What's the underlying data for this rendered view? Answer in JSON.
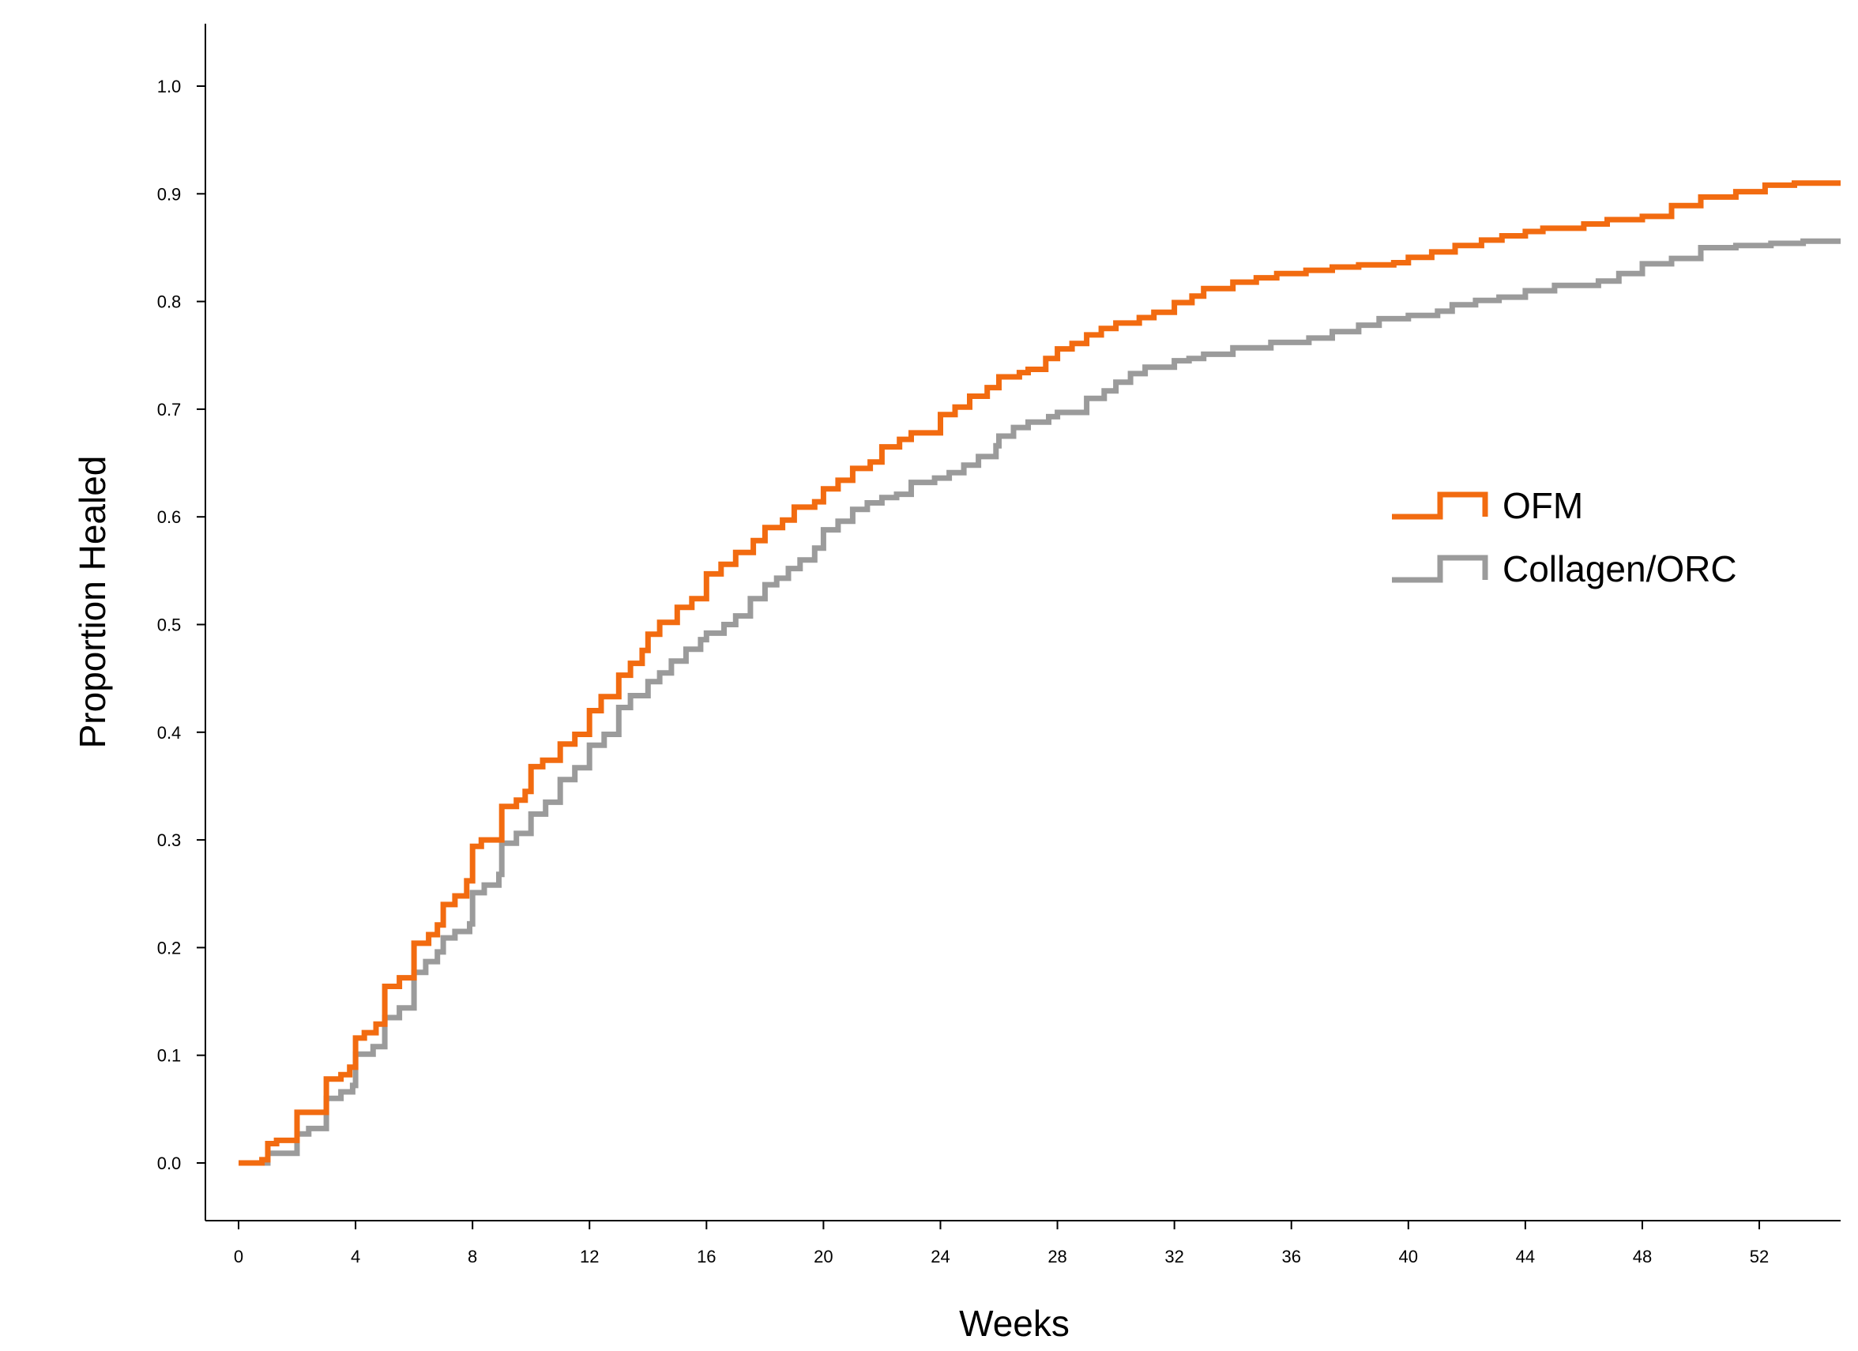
{
  "chart_data": {
    "type": "line",
    "step": true,
    "title": "",
    "xlabel": "Weeks",
    "ylabel": "Proportion Healed",
    "xlim": [
      -1.0,
      55.0
    ],
    "ylim": [
      -0.052,
      1.055
    ],
    "xticks": [
      0,
      4,
      8,
      12,
      16,
      20,
      24,
      28,
      32,
      36,
      40,
      44,
      48,
      52
    ],
    "yticks": [
      "0.0",
      "0.1",
      "0.2",
      "0.3",
      "0.4",
      "0.5",
      "0.6",
      "0.7",
      "0.8",
      "0.9",
      "1.0"
    ],
    "legend_position": "right",
    "grid": false,
    "series": [
      {
        "name": "OFM",
        "color": "#F26B10",
        "points": [
          [
            0,
            0.0
          ],
          [
            0.8,
            0.003
          ],
          [
            1.0,
            0.018
          ],
          [
            1.3,
            0.021
          ],
          [
            2.0,
            0.047
          ],
          [
            3.0,
            0.078
          ],
          [
            3.5,
            0.082
          ],
          [
            3.8,
            0.089
          ],
          [
            4.0,
            0.116
          ],
          [
            4.3,
            0.121
          ],
          [
            4.7,
            0.129
          ],
          [
            5.0,
            0.164
          ],
          [
            5.5,
            0.172
          ],
          [
            6.0,
            0.204
          ],
          [
            6.5,
            0.212
          ],
          [
            6.8,
            0.221
          ],
          [
            7.0,
            0.24
          ],
          [
            7.4,
            0.248
          ],
          [
            7.8,
            0.262
          ],
          [
            8.0,
            0.294
          ],
          [
            8.3,
            0.3
          ],
          [
            9.0,
            0.331
          ],
          [
            9.5,
            0.337
          ],
          [
            9.8,
            0.345
          ],
          [
            10.0,
            0.368
          ],
          [
            10.4,
            0.374
          ],
          [
            11.0,
            0.389
          ],
          [
            11.5,
            0.398
          ],
          [
            12.0,
            0.42
          ],
          [
            12.4,
            0.433
          ],
          [
            13.0,
            0.453
          ],
          [
            13.4,
            0.464
          ],
          [
            13.8,
            0.476
          ],
          [
            14.0,
            0.491
          ],
          [
            14.4,
            0.502
          ],
          [
            15.0,
            0.516
          ],
          [
            15.5,
            0.524
          ],
          [
            16.0,
            0.547
          ],
          [
            16.5,
            0.556
          ],
          [
            17.0,
            0.567
          ],
          [
            17.6,
            0.578
          ],
          [
            18.0,
            0.59
          ],
          [
            18.6,
            0.597
          ],
          [
            19.0,
            0.609
          ],
          [
            19.7,
            0.614
          ],
          [
            20.0,
            0.626
          ],
          [
            20.5,
            0.634
          ],
          [
            21.0,
            0.645
          ],
          [
            21.6,
            0.651
          ],
          [
            22.0,
            0.665
          ],
          [
            22.6,
            0.672
          ],
          [
            23.0,
            0.678
          ],
          [
            24.0,
            0.695
          ],
          [
            24.5,
            0.702
          ],
          [
            25.0,
            0.712
          ],
          [
            25.6,
            0.72
          ],
          [
            26.0,
            0.73
          ],
          [
            26.7,
            0.734
          ],
          [
            27.0,
            0.737
          ],
          [
            27.6,
            0.747
          ],
          [
            28.0,
            0.756
          ],
          [
            28.5,
            0.761
          ],
          [
            29.0,
            0.769
          ],
          [
            29.5,
            0.775
          ],
          [
            30.0,
            0.78
          ],
          [
            30.8,
            0.785
          ],
          [
            31.3,
            0.79
          ],
          [
            32.0,
            0.799
          ],
          [
            32.6,
            0.805
          ],
          [
            33.0,
            0.812
          ],
          [
            34.0,
            0.818
          ],
          [
            34.8,
            0.822
          ],
          [
            35.5,
            0.826
          ],
          [
            36.5,
            0.829
          ],
          [
            37.4,
            0.832
          ],
          [
            38.3,
            0.834
          ],
          [
            39.5,
            0.836
          ],
          [
            40.0,
            0.841
          ],
          [
            40.8,
            0.846
          ],
          [
            41.6,
            0.852
          ],
          [
            42.5,
            0.857
          ],
          [
            43.2,
            0.861
          ],
          [
            44.0,
            0.865
          ],
          [
            44.6,
            0.868
          ],
          [
            46.0,
            0.872
          ],
          [
            46.8,
            0.876
          ],
          [
            48.0,
            0.879
          ],
          [
            49.0,
            0.889
          ],
          [
            50.0,
            0.897
          ],
          [
            51.2,
            0.902
          ],
          [
            52.2,
            0.908
          ],
          [
            53.2,
            0.91
          ],
          [
            55.0,
            0.91
          ]
        ]
      },
      {
        "name": "Collagen/ORC",
        "color": "#9B9B9B",
        "points": [
          [
            0,
            0.0
          ],
          [
            1.0,
            0.009
          ],
          [
            2.0,
            0.027
          ],
          [
            2.4,
            0.032
          ],
          [
            3.0,
            0.06
          ],
          [
            3.5,
            0.066
          ],
          [
            3.9,
            0.072
          ],
          [
            4.0,
            0.101
          ],
          [
            4.6,
            0.108
          ],
          [
            5.0,
            0.135
          ],
          [
            5.5,
            0.144
          ],
          [
            6.0,
            0.177
          ],
          [
            6.4,
            0.187
          ],
          [
            6.8,
            0.196
          ],
          [
            7.0,
            0.209
          ],
          [
            7.4,
            0.215
          ],
          [
            7.9,
            0.222
          ],
          [
            8.0,
            0.251
          ],
          [
            8.4,
            0.258
          ],
          [
            8.9,
            0.268
          ],
          [
            9.0,
            0.297
          ],
          [
            9.5,
            0.306
          ],
          [
            10.0,
            0.324
          ],
          [
            10.5,
            0.335
          ],
          [
            11.0,
            0.356
          ],
          [
            11.5,
            0.367
          ],
          [
            12.0,
            0.388
          ],
          [
            12.5,
            0.398
          ],
          [
            13.0,
            0.423
          ],
          [
            13.4,
            0.434
          ],
          [
            14.0,
            0.447
          ],
          [
            14.4,
            0.455
          ],
          [
            14.8,
            0.466
          ],
          [
            15.3,
            0.477
          ],
          [
            15.8,
            0.486
          ],
          [
            16.0,
            0.492
          ],
          [
            16.6,
            0.5
          ],
          [
            17.0,
            0.508
          ],
          [
            17.5,
            0.524
          ],
          [
            18.0,
            0.537
          ],
          [
            18.4,
            0.543
          ],
          [
            18.8,
            0.552
          ],
          [
            19.2,
            0.56
          ],
          [
            19.7,
            0.571
          ],
          [
            20.0,
            0.588
          ],
          [
            20.5,
            0.596
          ],
          [
            21.0,
            0.607
          ],
          [
            21.5,
            0.613
          ],
          [
            22.0,
            0.618
          ],
          [
            22.5,
            0.621
          ],
          [
            23.0,
            0.632
          ],
          [
            23.8,
            0.636
          ],
          [
            24.3,
            0.641
          ],
          [
            24.8,
            0.648
          ],
          [
            25.3,
            0.656
          ],
          [
            25.9,
            0.666
          ],
          [
            26.0,
            0.675
          ],
          [
            26.5,
            0.683
          ],
          [
            27.0,
            0.688
          ],
          [
            27.7,
            0.693
          ],
          [
            28.0,
            0.697
          ],
          [
            29.0,
            0.71
          ],
          [
            29.6,
            0.717
          ],
          [
            30.0,
            0.725
          ],
          [
            30.5,
            0.733
          ],
          [
            31.0,
            0.739
          ],
          [
            32.0,
            0.745
          ],
          [
            32.5,
            0.747
          ],
          [
            33.0,
            0.751
          ],
          [
            34.0,
            0.757
          ],
          [
            35.3,
            0.762
          ],
          [
            36.6,
            0.766
          ],
          [
            37.4,
            0.772
          ],
          [
            38.3,
            0.778
          ],
          [
            39.0,
            0.784
          ],
          [
            40.0,
            0.787
          ],
          [
            41.0,
            0.791
          ],
          [
            41.5,
            0.797
          ],
          [
            42.3,
            0.801
          ],
          [
            43.1,
            0.804
          ],
          [
            44.0,
            0.81
          ],
          [
            45.0,
            0.815
          ],
          [
            46.5,
            0.819
          ],
          [
            47.2,
            0.826
          ],
          [
            48.0,
            0.835
          ],
          [
            49.0,
            0.84
          ],
          [
            50.0,
            0.85
          ],
          [
            51.2,
            0.852
          ],
          [
            52.4,
            0.854
          ],
          [
            53.5,
            0.856
          ],
          [
            55.0,
            0.856
          ]
        ]
      }
    ]
  }
}
